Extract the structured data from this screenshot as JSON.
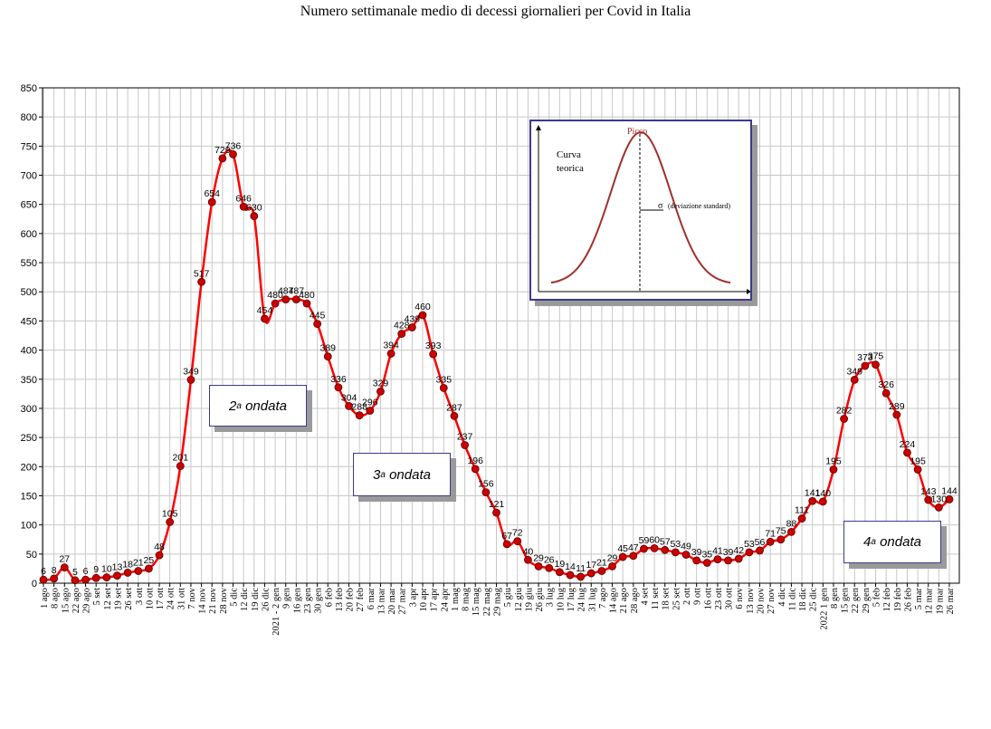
{
  "chart_data": {
    "type": "line",
    "title": "Numero settimanale medio di decessi giornalieri per Covid in Italia",
    "ylim": [
      0,
      850
    ],
    "yticks": [
      0,
      50,
      100,
      150,
      200,
      250,
      300,
      350,
      400,
      450,
      500,
      550,
      600,
      650,
      700,
      750,
      800,
      850
    ],
    "grid": true,
    "line_color": "#ff0000",
    "marker_color": "#cc0000",
    "categories": [
      "1 ago",
      "8 ago",
      "15 ago",
      "22 ago",
      "29 ago",
      "5 set",
      "12 set",
      "19 set",
      "26 set",
      "3 ott",
      "10 ott",
      "17 ott",
      "24 ott",
      "31 ott",
      "7 nov",
      "14 nov",
      "21 nov",
      "28 nov",
      "5 dic",
      "12 dic",
      "19 dic",
      "26 dic",
      "2021 - 2 gen",
      "9 gen",
      "16 gen",
      "23 gen",
      "30 gen",
      "6 feb",
      "13 feb",
      "20 feb",
      "27 feb",
      "6 mar",
      "13 mar",
      "20 mar",
      "27 mar",
      "3 apr",
      "10 apr",
      "17 apr",
      "24 apr",
      "1 mag",
      "8 mag",
      "15 mag",
      "22 mag",
      "29 mag",
      "5 giu",
      "12 giu",
      "19 giu",
      "26 giu",
      "3 lug",
      "10 lug",
      "17 lug",
      "24 lug",
      "31 lug",
      "7 ago",
      "14 ago",
      "21 ago",
      "28 ago",
      "4 set",
      "11 set",
      "18 set",
      "25 set",
      "2 ott",
      "9 ott",
      "16 ott",
      "23 ott",
      "30 ott",
      "6 nov",
      "13 nov",
      "20 nov",
      "27 nov",
      "4 dic",
      "11 dic",
      "18 dic",
      "25 dic",
      "2022 1 gen",
      "8 gen",
      "15 gen",
      "22 gen",
      "29 gen",
      "5 feb",
      "12 feb",
      "19 feb",
      "26 feb",
      "5 mar",
      "12 mar",
      "19 mar",
      "26 mar"
    ],
    "values": [
      6,
      8,
      27,
      5,
      6,
      9,
      10,
      13,
      18,
      21,
      25,
      48,
      105,
      201,
      349,
      517,
      654,
      729,
      736,
      646,
      630,
      454,
      480,
      487,
      487,
      480,
      445,
      389,
      336,
      304,
      288,
      296,
      329,
      394,
      428,
      439,
      460,
      393,
      335,
      287,
      237,
      196,
      156,
      121,
      67,
      72,
      40,
      29,
      26,
      19,
      14,
      11,
      17,
      21,
      29,
      45,
      47,
      59,
      60,
      57,
      53,
      49,
      39,
      35,
      41,
      39,
      42,
      53,
      56,
      71,
      75,
      88,
      111,
      141,
      140,
      195,
      282,
      349,
      373,
      375,
      326,
      289,
      224,
      195,
      143,
      130,
      144
    ],
    "annotations": [
      {
        "sup": "a",
        "base": "2",
        "text": "ondata"
      },
      {
        "sup": "a",
        "base": "3",
        "text": "ondata"
      },
      {
        "sup": "a",
        "base": "4",
        "text": "ondata"
      }
    ],
    "inset": {
      "peak_label": "Picco",
      "curve_label_1": "Curva",
      "curve_label_2": "teorica",
      "sigma_symbol": "σ",
      "sigma_label": "(deviazione standard)"
    }
  }
}
